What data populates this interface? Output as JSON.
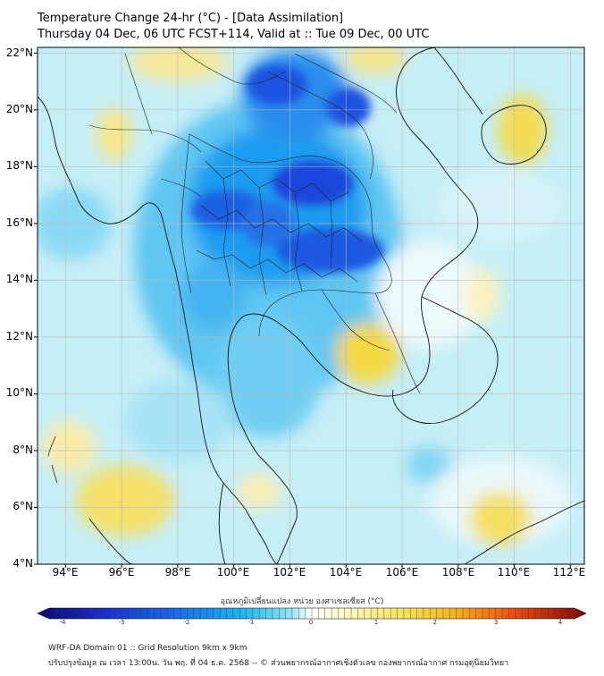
{
  "title_line1": "Temperature Change 24-hr (°C) - [Data Assimilation]",
  "title_line2": "Thursday 04 Dec, 06 UTC FCST+114, Valid at :: Tue 09 Dec, 00 UTC",
  "lat_labels": [
    "22°N",
    "20°N",
    "18°N",
    "16°N",
    "14°N",
    "12°N",
    "10°N",
    "8°N",
    "6°N",
    "4°N"
  ],
  "lon_labels": [
    "94°E",
    "96°E",
    "98°E",
    "100°E",
    "102°E",
    "104°E",
    "106°E",
    "108°E",
    "110°E",
    "112°E"
  ],
  "colorbar_label": "อุณหภูมิเปลี่ยนแปลง หน่วย องศาเซลเซียส (°C)",
  "colorbar_ticks": [
    "-4",
    "-3",
    "-2",
    "-1",
    "0",
    "1",
    "2",
    "3",
    "4"
  ],
  "footer_line1": "WRF-DA Domain 01 :: Grid Resolution 9km x 9km",
  "footer_line2": "ปรับปรุงข้อมูล ณ เวลา 13:00น. วัน พฤ. ที่ 04 ธ.ค. 2568 -- © ส่วนพยากรณ์อากาศเชิงตัวเลข กองพยากรณ์อากาศ กรมอุตุนิยมวิทยา",
  "map_extent": {
    "lon_min": 93,
    "lon_max": 112.5,
    "lat_min": 4,
    "lat_max": 22.2
  },
  "colors": {
    "background_field": "#c6eef7",
    "strong_cooling": "#1d4ee0",
    "moderate_cooling": "#1f9cf0",
    "weak_cooling": "#8ad9f4",
    "neutral": "#e6f7fb",
    "weak_warming": "#fbf3b0",
    "moderate_warming": "#f5dc4a",
    "coastline": "#111111",
    "grid": "#b9b9b9"
  }
}
